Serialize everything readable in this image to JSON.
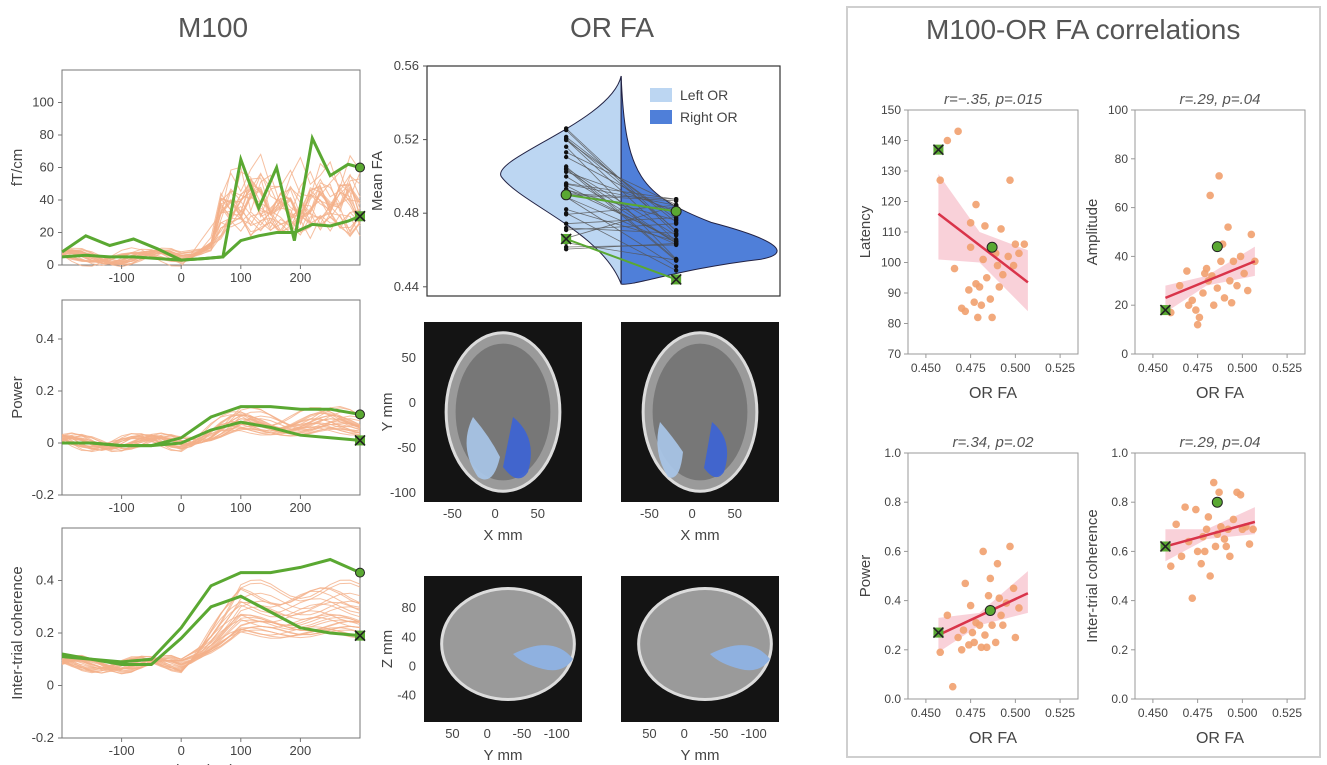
{
  "titles": {
    "m100": "M100",
    "orfa": "OR FA",
    "corr": "M100-OR FA correlations"
  },
  "colors": {
    "green": "#5aa832",
    "orange": "#f1a06e",
    "orange_line": "#f4b089",
    "red_fit": "#d9344a",
    "ci": "#f7c6cf",
    "left_or": "#bcd6f2",
    "right_or": "#4f7fd9"
  },
  "chart_data": [
    {
      "type": "line",
      "panel": "M100 amplitude",
      "xlabel": "",
      "ylabel": "fT/cm",
      "xlim": [
        -200,
        300
      ],
      "ylim": [
        0,
        120
      ],
      "x_ticks": [
        -100,
        0,
        100,
        200
      ],
      "y_ticks": [
        0,
        20,
        40,
        60,
        80,
        100
      ],
      "highlight_series": [
        {
          "marker": "circle",
          "x": [
            -200,
            -160,
            -120,
            -80,
            -40,
            0,
            40,
            70,
            100,
            130,
            160,
            190,
            220,
            250,
            280,
            300
          ],
          "y": [
            8,
            18,
            12,
            16,
            10,
            3,
            4,
            5,
            65,
            35,
            60,
            15,
            78,
            55,
            62,
            60
          ]
        },
        {
          "marker": "x",
          "x": [
            -200,
            -160,
            -120,
            -80,
            -40,
            0,
            40,
            70,
            100,
            130,
            160,
            190,
            220,
            250,
            280,
            300
          ],
          "y": [
            5,
            6,
            5,
            5,
            4,
            3,
            4,
            5,
            15,
            18,
            20,
            20,
            25,
            24,
            27,
            30
          ]
        }
      ]
    },
    {
      "type": "line",
      "panel": "Power",
      "xlabel": "",
      "ylabel": "Power",
      "xlim": [
        -200,
        300
      ],
      "ylim": [
        -0.2,
        0.55
      ],
      "x_ticks": [
        -100,
        0,
        100,
        200
      ],
      "y_ticks": [
        -0.2,
        0,
        0.2,
        0.4
      ],
      "highlight_series": [
        {
          "marker": "circle",
          "x": [
            -200,
            -150,
            -100,
            -50,
            0,
            50,
            100,
            150,
            200,
            250,
            300
          ],
          "y": [
            0,
            0,
            -0.01,
            -0.01,
            0.02,
            0.1,
            0.14,
            0.14,
            0.13,
            0.13,
            0.11
          ]
        },
        {
          "marker": "x",
          "x": [
            -200,
            -150,
            -100,
            -50,
            0,
            50,
            100,
            150,
            200,
            250,
            300
          ],
          "y": [
            0,
            0,
            -0.01,
            -0.01,
            0,
            0.05,
            0.08,
            0.06,
            0.03,
            0.02,
            0.01
          ]
        }
      ]
    },
    {
      "type": "line",
      "panel": "Inter-trial coherence",
      "xlabel": "Time (ms)",
      "ylabel": "Inter-trial coherence",
      "xlim": [
        -200,
        300
      ],
      "ylim": [
        -0.2,
        0.6
      ],
      "x_ticks": [
        -100,
        0,
        100,
        200
      ],
      "y_ticks": [
        -0.2,
        0,
        0.2,
        0.4
      ],
      "highlight_series": [
        {
          "marker": "circle",
          "x": [
            -200,
            -150,
            -100,
            -50,
            0,
            50,
            100,
            150,
            200,
            250,
            300
          ],
          "y": [
            0.11,
            0.1,
            0.09,
            0.1,
            0.22,
            0.38,
            0.43,
            0.43,
            0.45,
            0.48,
            0.43
          ]
        },
        {
          "marker": "x",
          "x": [
            -200,
            -150,
            -100,
            -50,
            0,
            50,
            100,
            150,
            200,
            250,
            300
          ],
          "y": [
            0.12,
            0.1,
            0.08,
            0.08,
            0.18,
            0.3,
            0.34,
            0.28,
            0.22,
            0.2,
            0.19
          ]
        }
      ]
    },
    {
      "type": "violin",
      "panel": "OR FA",
      "ylabel": "Mean FA",
      "ylim": [
        0.435,
        0.56
      ],
      "y_ticks": [
        0.44,
        0.48,
        0.52,
        0.56
      ],
      "legend": [
        "Left OR",
        "Right OR"
      ],
      "highlight": {
        "circle": [
          0.49,
          0.481
        ],
        "x": [
          0.466,
          0.444
        ]
      }
    },
    {
      "type": "scatter",
      "panel": "Latency vs OR FA",
      "title": "r=−.35, p=.015",
      "xlabel": "OR FA",
      "ylabel": "Latency",
      "xlim": [
        0.44,
        0.535
      ],
      "ylim": [
        70,
        150
      ],
      "x_ticks": [
        0.45,
        0.475,
        0.5,
        0.525
      ],
      "x_tick_labels": [
        "0.450",
        "0.475",
        "0.500",
        "0.525"
      ],
      "y_ticks": [
        70,
        80,
        90,
        100,
        110,
        120,
        130,
        140,
        150
      ],
      "points": [
        [
          0.458,
          127
        ],
        [
          0.462,
          140
        ],
        [
          0.468,
          143
        ],
        [
          0.475,
          113
        ],
        [
          0.478,
          119
        ],
        [
          0.483,
          112
        ],
        [
          0.489,
          103
        ],
        [
          0.492,
          111
        ],
        [
          0.497,
          127
        ],
        [
          0.5,
          106
        ],
        [
          0.502,
          103
        ],
        [
          0.505,
          106
        ],
        [
          0.466,
          98
        ],
        [
          0.47,
          85
        ],
        [
          0.474,
          91
        ],
        [
          0.477,
          87
        ],
        [
          0.478,
          93
        ],
        [
          0.48,
          92
        ],
        [
          0.481,
          86
        ],
        [
          0.482,
          101
        ],
        [
          0.484,
          95
        ],
        [
          0.487,
          82
        ],
        [
          0.49,
          99
        ],
        [
          0.493,
          96
        ],
        [
          0.496,
          102
        ],
        [
          0.472,
          84
        ],
        [
          0.479,
          82
        ],
        [
          0.486,
          88
        ],
        [
          0.491,
          92
        ],
        [
          0.475,
          105
        ],
        [
          0.499,
          99
        ]
      ],
      "highlight": {
        "circle": [
          0.487,
          105
        ],
        "x": [
          0.457,
          137
        ]
      },
      "fit": [
        [
          0.457,
          116
        ],
        [
          0.507,
          93.5
        ]
      ],
      "ci_upper": [
        [
          0.457,
          129
        ],
        [
          0.48,
          110
        ],
        [
          0.507,
          104
        ]
      ],
      "ci_lower": [
        [
          0.457,
          101
        ],
        [
          0.48,
          100
        ],
        [
          0.507,
          84
        ]
      ]
    },
    {
      "type": "scatter",
      "panel": "Amplitude vs OR FA",
      "title": "r=.29, p=.04",
      "xlabel": "OR FA",
      "ylabel": "Amplitude",
      "xlim": [
        0.44,
        0.535
      ],
      "ylim": [
        0,
        100
      ],
      "x_ticks": [
        0.45,
        0.475,
        0.5,
        0.525
      ],
      "x_tick_labels": [
        "0.450",
        "0.475",
        "0.500",
        "0.525"
      ],
      "y_ticks": [
        0,
        20,
        40,
        60,
        80,
        100
      ],
      "points": [
        [
          0.465,
          28
        ],
        [
          0.469,
          34
        ],
        [
          0.472,
          22
        ],
        [
          0.474,
          18
        ],
        [
          0.476,
          15
        ],
        [
          0.478,
          25
        ],
        [
          0.479,
          33
        ],
        [
          0.48,
          35
        ],
        [
          0.481,
          30
        ],
        [
          0.482,
          65
        ],
        [
          0.484,
          20
        ],
        [
          0.486,
          27
        ],
        [
          0.487,
          73
        ],
        [
          0.489,
          45
        ],
        [
          0.49,
          23
        ],
        [
          0.492,
          52
        ],
        [
          0.493,
          30
        ],
        [
          0.495,
          38
        ],
        [
          0.497,
          28
        ],
        [
          0.499,
          40
        ],
        [
          0.501,
          33
        ],
        [
          0.503,
          26
        ],
        [
          0.505,
          49
        ],
        [
          0.507,
          38
        ],
        [
          0.47,
          20
        ],
        [
          0.475,
          12
        ],
        [
          0.483,
          32
        ],
        [
          0.488,
          38
        ],
        [
          0.494,
          21
        ],
        [
          0.46,
          17
        ]
      ],
      "highlight": {
        "circle": [
          0.486,
          44
        ],
        "x": [
          0.457,
          18
        ]
      },
      "fit": [
        [
          0.457,
          23
        ],
        [
          0.507,
          38
        ]
      ],
      "ci_upper": [
        [
          0.457,
          28
        ],
        [
          0.48,
          32
        ],
        [
          0.507,
          44
        ]
      ],
      "ci_lower": [
        [
          0.457,
          17
        ],
        [
          0.48,
          28
        ],
        [
          0.507,
          32
        ]
      ]
    },
    {
      "type": "scatter",
      "panel": "Power vs OR FA",
      "title": "r=.34, p=.02",
      "xlabel": "OR FA",
      "ylabel": "Power",
      "xlim": [
        0.44,
        0.535
      ],
      "ylim": [
        0,
        1.0
      ],
      "x_ticks": [
        0.45,
        0.475,
        0.5,
        0.525
      ],
      "x_tick_labels": [
        "0.450",
        "0.475",
        "0.500",
        "0.525"
      ],
      "y_ticks": [
        0,
        0.2,
        0.4,
        0.6,
        0.8,
        1.0
      ],
      "points": [
        [
          0.458,
          0.19
        ],
        [
          0.462,
          0.34
        ],
        [
          0.465,
          0.05
        ],
        [
          0.468,
          0.25
        ],
        [
          0.47,
          0.2
        ],
        [
          0.472,
          0.47
        ],
        [
          0.474,
          0.22
        ],
        [
          0.475,
          0.38
        ],
        [
          0.477,
          0.23
        ],
        [
          0.478,
          0.31
        ],
        [
          0.48,
          0.3
        ],
        [
          0.481,
          0.21
        ],
        [
          0.482,
          0.6
        ],
        [
          0.483,
          0.26
        ],
        [
          0.485,
          0.42
        ],
        [
          0.486,
          0.49
        ],
        [
          0.487,
          0.3
        ],
        [
          0.489,
          0.23
        ],
        [
          0.49,
          0.55
        ],
        [
          0.492,
          0.34
        ],
        [
          0.493,
          0.3
        ],
        [
          0.495,
          0.39
        ],
        [
          0.497,
          0.62
        ],
        [
          0.499,
          0.45
        ],
        [
          0.5,
          0.25
        ],
        [
          0.502,
          0.37
        ],
        [
          0.476,
          0.27
        ],
        [
          0.484,
          0.21
        ],
        [
          0.491,
          0.41
        ],
        [
          0.471,
          0.28
        ]
      ],
      "highlight": {
        "circle": [
          0.486,
          0.36
        ],
        "x": [
          0.457,
          0.27
        ]
      },
      "fit": [
        [
          0.457,
          0.26
        ],
        [
          0.507,
          0.43
        ]
      ],
      "ci_upper": [
        [
          0.457,
          0.33
        ],
        [
          0.48,
          0.35
        ],
        [
          0.507,
          0.52
        ]
      ],
      "ci_lower": [
        [
          0.457,
          0.19
        ],
        [
          0.48,
          0.3
        ],
        [
          0.507,
          0.35
        ]
      ]
    },
    {
      "type": "scatter",
      "panel": "ITC vs OR FA",
      "title": "r=.29, p=.04",
      "xlabel": "OR FA",
      "ylabel": "Inter-trial coherence",
      "xlim": [
        0.44,
        0.535
      ],
      "ylim": [
        0,
        1.0
      ],
      "x_ticks": [
        0.45,
        0.475,
        0.5,
        0.525
      ],
      "x_tick_labels": [
        "0.450",
        "0.475",
        "0.500",
        "0.525"
      ],
      "y_ticks": [
        0,
        0.2,
        0.4,
        0.6,
        0.8,
        1.0
      ],
      "points": [
        [
          0.46,
          0.54
        ],
        [
          0.463,
          0.71
        ],
        [
          0.466,
          0.58
        ],
        [
          0.468,
          0.78
        ],
        [
          0.47,
          0.64
        ],
        [
          0.472,
          0.41
        ],
        [
          0.474,
          0.77
        ],
        [
          0.475,
          0.6
        ],
        [
          0.477,
          0.55
        ],
        [
          0.478,
          0.66
        ],
        [
          0.48,
          0.69
        ],
        [
          0.481,
          0.74
        ],
        [
          0.482,
          0.5
        ],
        [
          0.484,
          0.88
        ],
        [
          0.485,
          0.62
        ],
        [
          0.487,
          0.84
        ],
        [
          0.488,
          0.7
        ],
        [
          0.49,
          0.65
        ],
        [
          0.492,
          0.69
        ],
        [
          0.493,
          0.58
        ],
        [
          0.495,
          0.73
        ],
        [
          0.497,
          0.84
        ],
        [
          0.499,
          0.83
        ],
        [
          0.5,
          0.69
        ],
        [
          0.502,
          0.7
        ],
        [
          0.504,
          0.63
        ],
        [
          0.506,
          0.69
        ],
        [
          0.479,
          0.6
        ],
        [
          0.486,
          0.67
        ],
        [
          0.491,
          0.62
        ]
      ],
      "highlight": {
        "circle": [
          0.486,
          0.8
        ],
        "x": [
          0.457,
          0.62
        ]
      },
      "fit": [
        [
          0.457,
          0.62
        ],
        [
          0.507,
          0.72
        ]
      ],
      "ci_upper": [
        [
          0.457,
          0.69
        ],
        [
          0.48,
          0.69
        ],
        [
          0.507,
          0.78
        ]
      ],
      "ci_lower": [
        [
          0.457,
          0.56
        ],
        [
          0.48,
          0.65
        ],
        [
          0.507,
          0.67
        ]
      ]
    }
  ],
  "brain_axes": {
    "axial": {
      "xlabel": "X mm",
      "ylabel": "Y mm",
      "x_ticks": [
        "-50",
        "0",
        "50"
      ],
      "y_ticks": [
        "50",
        "0",
        "-50",
        "-100"
      ]
    },
    "sagittal": {
      "xlabel": "Y mm",
      "ylabel": "Z mm",
      "x_ticks": [
        "50",
        "0",
        "-50",
        "-100"
      ],
      "y_ticks": [
        "80",
        "40",
        "0",
        "-40"
      ]
    }
  }
}
